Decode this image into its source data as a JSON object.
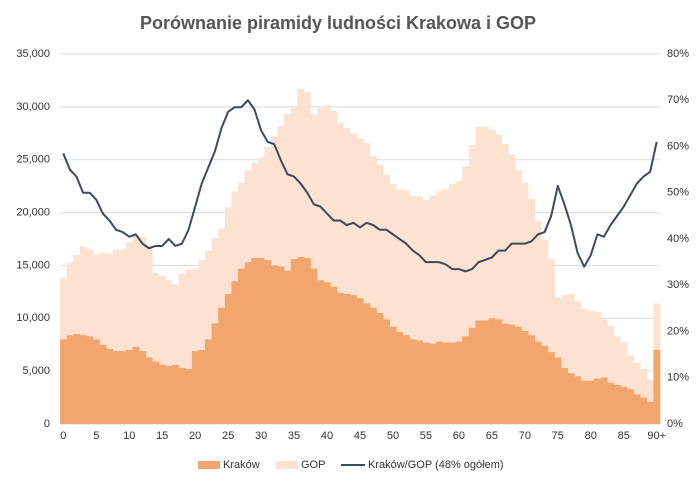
{
  "chart_data": {
    "type": "bar",
    "title": "Porównanie piramidy ludności Krakowa i GOP",
    "categories": [
      "0",
      null,
      null,
      null,
      null,
      "5",
      null,
      null,
      null,
      null,
      "10",
      null,
      null,
      null,
      null,
      "15",
      null,
      null,
      null,
      null,
      "20",
      null,
      null,
      null,
      null,
      "25",
      null,
      null,
      null,
      null,
      "30",
      null,
      null,
      null,
      null,
      "35",
      null,
      null,
      null,
      null,
      "40",
      null,
      null,
      null,
      null,
      "45",
      null,
      null,
      null,
      null,
      "50",
      null,
      null,
      null,
      null,
      "55",
      null,
      null,
      null,
      null,
      "60",
      null,
      null,
      null,
      null,
      "65",
      null,
      null,
      null,
      null,
      "70",
      null,
      null,
      null,
      null,
      "75",
      null,
      null,
      null,
      null,
      "80",
      null,
      null,
      null,
      null,
      "85",
      null,
      null,
      null,
      null,
      "90+"
    ],
    "series": [
      {
        "name": "GOP",
        "type": "bar",
        "color": "#fde1d1",
        "values": [
          13800,
          15300,
          16000,
          16800,
          16500,
          16000,
          16200,
          16100,
          16500,
          16500,
          17200,
          17800,
          17700,
          16800,
          14300,
          14000,
          13600,
          13200,
          14200,
          14600,
          14700,
          15500,
          16400,
          17600,
          18500,
          20500,
          22000,
          22800,
          24000,
          24700,
          25200,
          26200,
          27200,
          28200,
          29300,
          30100,
          31700,
          31400,
          29300,
          29900,
          30200,
          29600,
          28500,
          28000,
          27500,
          27000,
          26600,
          25300,
          24500,
          23600,
          22700,
          22200,
          22100,
          21600,
          21500,
          21200,
          21600,
          22000,
          22200,
          22700,
          23000,
          24400,
          26400,
          28100,
          28100,
          27800,
          27400,
          26500,
          25500,
          24000,
          22800,
          21300,
          19200,
          17400,
          15600,
          12000,
          12200,
          12300,
          11600,
          10900,
          10700,
          10600,
          9900,
          9300,
          8300,
          7700,
          6500,
          5800,
          5200,
          4200,
          11400
        ]
      },
      {
        "name": "Kraków",
        "type": "bar",
        "color": "#f2a66e",
        "values": [
          8000,
          8400,
          8500,
          8400,
          8300,
          8000,
          7500,
          7100,
          6900,
          6900,
          7000,
          7300,
          6900,
          6300,
          5900,
          5600,
          5500,
          5600,
          5300,
          5200,
          6900,
          7000,
          8000,
          9500,
          11000,
          12300,
          13500,
          14700,
          15300,
          15700,
          15700,
          15500,
          15000,
          14900,
          14500,
          15600,
          15800,
          15700,
          14700,
          13600,
          13400,
          13000,
          12400,
          12300,
          12200,
          11900,
          11400,
          11000,
          10500,
          9900,
          9200,
          8700,
          8400,
          8000,
          7900,
          7700,
          7600,
          7800,
          7700,
          7700,
          7800,
          8300,
          9100,
          9800,
          9800,
          10000,
          9900,
          9500,
          9400,
          9200,
          8800,
          8400,
          7800,
          7400,
          6800,
          6300,
          5300,
          4800,
          4500,
          4100,
          4100,
          4300,
          4400,
          3900,
          3700,
          3500,
          3300,
          2800,
          2500,
          2100,
          7000
        ]
      },
      {
        "name": "Kraków/GOP (48% ogółem)",
        "type": "line",
        "axis": "y2",
        "color": "#3d4b60",
        "values": [
          58.5,
          55,
          53.5,
          50,
          50,
          48.5,
          45.5,
          44,
          42,
          41.5,
          40.5,
          41,
          39,
          38,
          38.5,
          38.5,
          40,
          38.5,
          39,
          42,
          47,
          52,
          55.5,
          59,
          64,
          67.5,
          68.5,
          68.5,
          70,
          68,
          63.5,
          61,
          60.5,
          57,
          54,
          53.5,
          52,
          50,
          47.5,
          47,
          45.5,
          44,
          44,
          43,
          43.5,
          42.5,
          43.5,
          43,
          42,
          42,
          41,
          40,
          39,
          37.5,
          36.5,
          35,
          35,
          35,
          34.5,
          33.5,
          33.5,
          33,
          33.5,
          35,
          35.5,
          36,
          37.5,
          37.5,
          39,
          39,
          39,
          39.5,
          41,
          41.5,
          45,
          51.5,
          47.5,
          43,
          37,
          34,
          36.5,
          41,
          40.5,
          43,
          45,
          47,
          49.5,
          52,
          53.5,
          54.5,
          61
        ]
      }
    ],
    "ylim": [
      0,
      35000
    ],
    "yticks": [
      0,
      {
        "value": 5000,
        "label": "5,000"
      },
      {
        "value": 10000,
        "label": "10,000"
      },
      {
        "value": 15000,
        "label": "15,000"
      },
      {
        "value": 20000,
        "label": "20,000"
      },
      {
        "value": 25000,
        "label": "25,000"
      },
      {
        "value": 30000,
        "label": "30,000"
      },
      {
        "value": 35000,
        "label": "35,000"
      }
    ],
    "y2lim": [
      0,
      80
    ],
    "y2ticks": [
      {
        "value": 0,
        "label": "0%"
      },
      {
        "value": 10,
        "label": "10%"
      },
      {
        "value": 20,
        "label": "20%"
      },
      {
        "value": 30,
        "label": "30%"
      },
      {
        "value": 40,
        "label": "40%"
      },
      {
        "value": 50,
        "label": "50%"
      },
      {
        "value": 60,
        "label": "60%"
      },
      {
        "value": 70,
        "label": "70%"
      },
      {
        "value": 80,
        "label": "80%"
      }
    ],
    "grid": true,
    "legend": "bottom"
  }
}
